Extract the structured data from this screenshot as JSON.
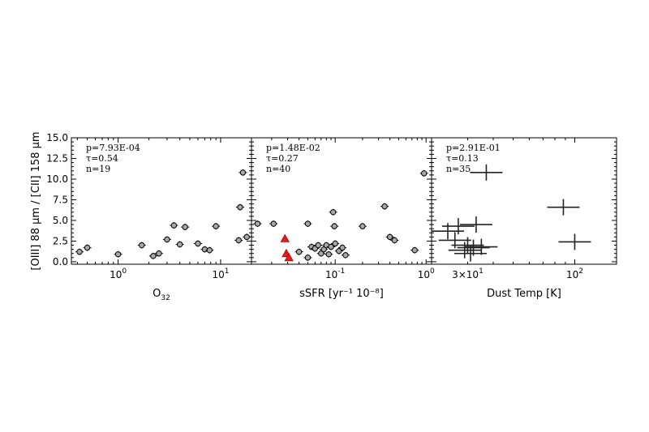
{
  "figure": {
    "ylabel": "[OIII] 88 μm / [CII] 158 μm",
    "ytick_labels": [
      "0.0",
      "2.5",
      "5.0",
      "7.5",
      "10.0",
      "12.5",
      "15.0"
    ]
  },
  "chart_data": [
    {
      "type": "scatter",
      "xlabel_main": "O",
      "xlabel_sub": "32",
      "xscale": "log",
      "xlim": [
        0.35,
        20
      ],
      "ylim": [
        -0.3,
        15
      ],
      "xtick_values": [
        1,
        10
      ],
      "xtick_labels": [
        {
          "base": "10",
          "exp": "0"
        },
        {
          "base": "10",
          "exp": "1"
        }
      ],
      "stats": [
        "p=7.93E-04",
        "τ=0.54",
        "n=19"
      ],
      "marker_color": "#a8a8a8",
      "points": [
        {
          "x": 0.42,
          "y": 1.2
        },
        {
          "x": 0.5,
          "y": 1.7
        },
        {
          "x": 1.0,
          "y": 0.9
        },
        {
          "x": 1.7,
          "y": 2.0
        },
        {
          "x": 2.2,
          "y": 0.7
        },
        {
          "x": 2.5,
          "y": 1.0
        },
        {
          "x": 3.0,
          "y": 2.7
        },
        {
          "x": 3.5,
          "y": 4.4
        },
        {
          "x": 4.0,
          "y": 2.1
        },
        {
          "x": 4.5,
          "y": 4.2
        },
        {
          "x": 6.0,
          "y": 2.2
        },
        {
          "x": 7.0,
          "y": 1.5
        },
        {
          "x": 7.8,
          "y": 1.4
        },
        {
          "x": 9.0,
          "y": 4.3
        },
        {
          "x": 15.0,
          "y": 2.6
        },
        {
          "x": 15.5,
          "y": 6.6
        },
        {
          "x": 16.5,
          "y": 10.8
        },
        {
          "x": 18.0,
          "y": 3.0
        }
      ]
    },
    {
      "type": "scatter",
      "xlabel": "sSFR [yr⁻¹ 10⁻⁸]",
      "xscale": "log",
      "xlim": [
        0.012,
        1.15
      ],
      "ylim": [
        -0.3,
        15
      ],
      "xtick_values": [
        0.1,
        1
      ],
      "xtick_labels": [
        {
          "base": "10",
          "exp": "-1"
        },
        {
          "base": "10",
          "exp": "0"
        }
      ],
      "stats": [
        "p=1.48E-02",
        "τ=0.27",
        "n=40"
      ],
      "marker_color": "#a8a8a8",
      "highlight_color": "#e02020",
      "points": [
        {
          "x": 0.014,
          "y": 4.6
        },
        {
          "x": 0.021,
          "y": 4.6
        },
        {
          "x": 0.05,
          "y": 4.6
        },
        {
          "x": 0.095,
          "y": 6.0
        },
        {
          "x": 0.098,
          "y": 4.3
        },
        {
          "x": 0.35,
          "y": 6.7
        },
        {
          "x": 0.2,
          "y": 4.3
        },
        {
          "x": 0.4,
          "y": 3.0
        },
        {
          "x": 0.45,
          "y": 2.6
        },
        {
          "x": 0.75,
          "y": 1.4
        },
        {
          "x": 0.95,
          "y": 10.7
        },
        {
          "x": 0.04,
          "y": 1.2
        },
        {
          "x": 0.055,
          "y": 1.8
        },
        {
          "x": 0.06,
          "y": 1.6
        },
        {
          "x": 0.065,
          "y": 2.0
        },
        {
          "x": 0.07,
          "y": 1.0
        },
        {
          "x": 0.075,
          "y": 1.5
        },
        {
          "x": 0.08,
          "y": 2.0
        },
        {
          "x": 0.085,
          "y": 0.9
        },
        {
          "x": 0.09,
          "y": 1.8
        },
        {
          "x": 0.1,
          "y": 2.2
        },
        {
          "x": 0.11,
          "y": 1.3
        },
        {
          "x": 0.12,
          "y": 1.7
        },
        {
          "x": 0.13,
          "y": 0.8
        },
        {
          "x": 0.05,
          "y": 0.5
        }
      ],
      "highlight_points": [
        {
          "x": 0.028,
          "y": 2.8
        },
        {
          "x": 0.029,
          "y": 1.0
        },
        {
          "x": 0.031,
          "y": 0.5
        }
      ]
    },
    {
      "type": "scatter",
      "xlabel": "Dust Temp [K]",
      "xscale": "log",
      "xlim": [
        20,
        160
      ],
      "ylim": [
        -0.3,
        15
      ],
      "xtick_values": [
        30,
        100
      ],
      "xtick_labels": [
        {
          "base": "3×10",
          "exp": "1"
        },
        {
          "base": "10",
          "exp": "2"
        }
      ],
      "stats": [
        "p=2.91E-01",
        "τ=0.13",
        "n=35"
      ],
      "points": [
        {
          "x": 37,
          "y": 10.8
        },
        {
          "x": 88,
          "y": 6.6
        },
        {
          "x": 100,
          "y": 2.4
        },
        {
          "x": 24,
          "y": 3.7
        },
        {
          "x": 27,
          "y": 4.3
        },
        {
          "x": 33,
          "y": 4.5
        },
        {
          "x": 30,
          "y": 2.0
        },
        {
          "x": 32,
          "y": 1.7
        },
        {
          "x": 29,
          "y": 1.4
        },
        {
          "x": 31,
          "y": 1.0
        },
        {
          "x": 26,
          "y": 2.6
        },
        {
          "x": 35,
          "y": 1.8
        }
      ]
    }
  ]
}
